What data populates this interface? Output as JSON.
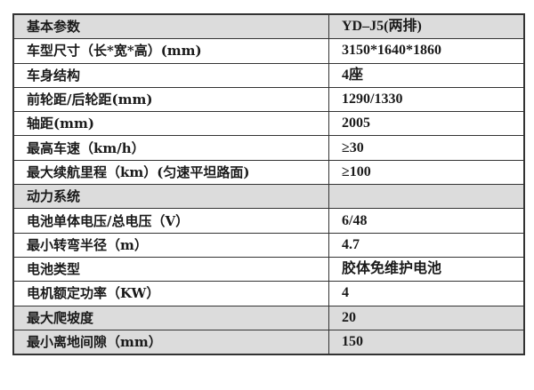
{
  "table": {
    "rows": [
      {
        "label": "基本参数",
        "value": "YD–J5(两排)",
        "shaded": true
      },
      {
        "label": "车型尺寸（长*宽*高）(mm)",
        "value": "3150*1640*1860",
        "shaded": false
      },
      {
        "label": "车身结构",
        "value": "4座",
        "shaded": false
      },
      {
        "label": "前轮距/后轮距(mm)",
        "value": "1290/1330",
        "shaded": false
      },
      {
        "label": "轴距(mm)",
        "value": "2005",
        "shaded": false
      },
      {
        "label": "最高车速（km/h）",
        "value": "≥30",
        "shaded": false
      },
      {
        "label": "最大续航里程（km）(匀速平坦路面)",
        "value": "≥100",
        "shaded": false
      },
      {
        "label": "动力系统",
        "value": "",
        "shaded": true
      },
      {
        "label": "电池单体电压/总电压（V）",
        "value": "6/48",
        "shaded": false
      },
      {
        "label": "最小转弯半径（m）",
        "value": "4.7",
        "shaded": false
      },
      {
        "label": "电池类型",
        "value": "胶体免维护电池",
        "shaded": false
      },
      {
        "label": "电机额定功率（KW）",
        "value": "4",
        "shaded": false
      },
      {
        "label": "最大爬坡度",
        "value": "20",
        "shaded": true
      },
      {
        "label": "最小离地间隙（mm）",
        "value": "150",
        "shaded": true
      }
    ],
    "shade_color": "#dcdcdc"
  }
}
